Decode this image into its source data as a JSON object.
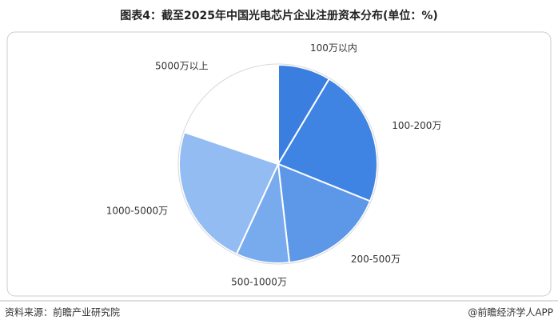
{
  "chart_data": {
    "type": "pie",
    "title": "图表4：截至2025年中国光电芯片企业注册资本分布(单位：%)",
    "categories": [
      "100万以内",
      "100-200万",
      "200-500万",
      "500-1000万",
      "1000-5000万",
      "5000万以上"
    ],
    "values": [
      8.6,
      22.5,
      17.1,
      8.7,
      23.3,
      19.8
    ],
    "colors": [
      "#3a7fe0",
      "#3f84e2",
      "#5d98e8",
      "#78aaee",
      "#93bcf3",
      "#ffffff"
    ]
  },
  "footer": {
    "source": "资料来源：前瞻产业研究院",
    "credit": "@前瞻经济学人APP"
  }
}
